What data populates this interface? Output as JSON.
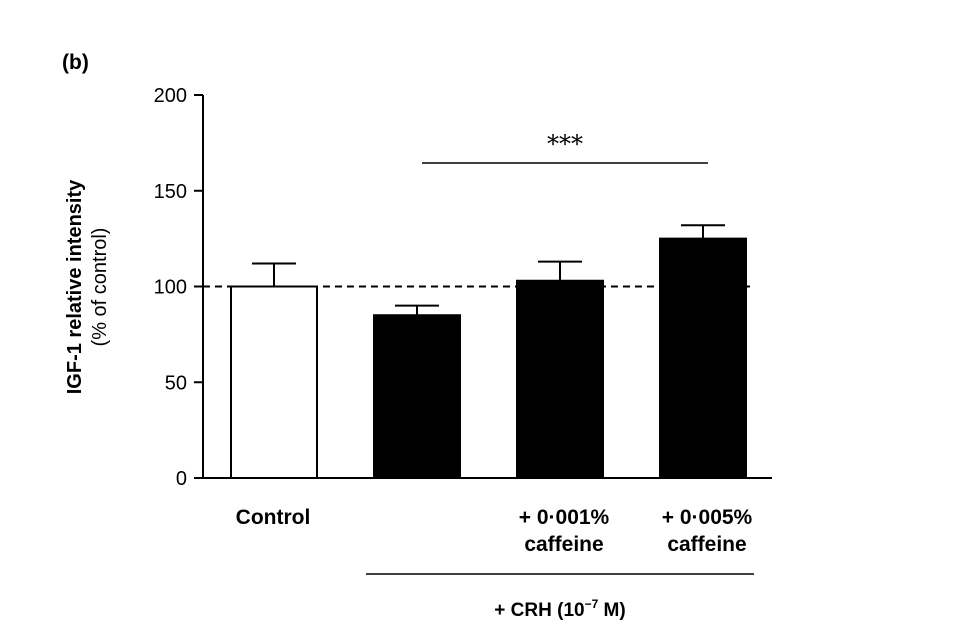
{
  "panel_label": "(b)",
  "chart_data": {
    "type": "bar",
    "ylabel_line1": "IGF-1 relative intensity",
    "ylabel_line2": "(% of control)",
    "ylim": [
      0,
      200
    ],
    "yticks": [
      0,
      50,
      100,
      150,
      200
    ],
    "reference_line": 100,
    "categories": [
      {
        "line1": "Control",
        "line2": ""
      },
      {
        "line1": "",
        "line2": ""
      },
      {
        "line1": "+ 0·001%",
        "line2": "caffeine"
      },
      {
        "line1": "+ 0·005%",
        "line2": "caffeine"
      }
    ],
    "values": [
      100,
      85,
      103,
      125
    ],
    "errors": [
      12,
      5,
      10,
      7
    ],
    "bar_fills": [
      "#ffffff",
      "#000000",
      "#000000",
      "#000000"
    ],
    "significance": {
      "label": "***",
      "from_bar": 1,
      "to_bar": 3
    },
    "group_bracket": {
      "label_prefix": "+ CRH (10",
      "label_exponent": "−7",
      "label_suffix": " M)",
      "from_bar": 1,
      "to_bar": 3
    }
  }
}
